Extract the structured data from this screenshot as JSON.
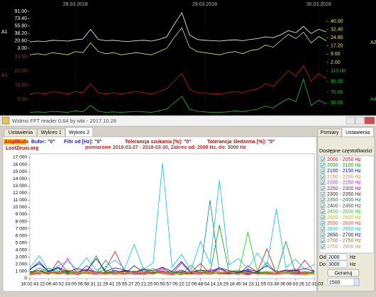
{
  "window": {
    "title": "Widmo FFT reader 0.64 by wbi - 2017.10.28",
    "tabs": [
      "Ustawienia",
      "Wykres 1",
      "Wykres 2"
    ],
    "side_tabs": [
      "Pomiary",
      "Ustawienia"
    ],
    "info": {
      "amplitude": "Amplituda",
      "buffer": "Bufor: \"0\"",
      "filter": "Filtr od [Hz]: \"0\"",
      "search_tol": "Tolerancja szukania [%]: \"0\"",
      "track_tol": "Tolerancja śledzenia [%]: \"0\"",
      "site": "LostZeusi.org"
    },
    "list_title": "Dostępne częstotliwości",
    "from_label": "Od",
    "from_value": "2000",
    "from_unit": "Hz",
    "to_label": "Do",
    "to_value": "3000",
    "to_unit": "Hz",
    "button": "Generuj",
    "spinner": "1500"
  },
  "chart_data": [
    {
      "type": "line",
      "categories": [
        null,
        null,
        null,
        null,
        null,
        null,
        "28.03.2018",
        null,
        null,
        null,
        null,
        null,
        null,
        null,
        null,
        null,
        null,
        null,
        null,
        null,
        null,
        null,
        null,
        "29.03.2018",
        null,
        null,
        null,
        null,
        null,
        null,
        null,
        null,
        null,
        null,
        null,
        null,
        null,
        null,
        "30.03.2018",
        null
      ],
      "series": [
        {
          "name": "A1",
          "color": "#ffffff",
          "ylim": [
            3,
            91
          ],
          "yticks": [
            {
              "value": 91,
              "label": "91.00"
            },
            {
              "value": 73.4,
              "label": "73.40"
            },
            {
              "value": 55.8,
              "label": "55.80"
            },
            {
              "value": 38.2,
              "label": "38.20"
            },
            {
              "value": 20.6,
              "label": "20.60"
            },
            {
              "value": 3,
              "label": "3.00"
            }
          ],
          "values": [
            18,
            20,
            19,
            22,
            21,
            20,
            23,
            25,
            48,
            24,
            21,
            22,
            20,
            19,
            21,
            22,
            20,
            24,
            30,
            60,
            88,
            35,
            24,
            22,
            21,
            20,
            22,
            23,
            21,
            24,
            26,
            30,
            28,
            35,
            45,
            40,
            55,
            38,
            48,
            42
          ]
        },
        {
          "name": "A2",
          "color": "#e8e070",
          "ylim": [
            2,
            40
          ],
          "yticks": [
            {
              "value": 40,
              "label": "40.00"
            },
            {
              "value": 32.4,
              "label": "32.40"
            },
            {
              "value": 24.8,
              "label": "24.80"
            },
            {
              "value": 17.2,
              "label": "17.20"
            },
            {
              "value": 9.6,
              "label": "9.60"
            },
            {
              "value": 2,
              "label": "2.00"
            }
          ],
          "values": [
            9,
            10,
            9,
            11,
            10,
            9,
            12,
            11,
            20,
            12,
            10,
            11,
            9,
            10,
            11,
            10,
            9,
            12,
            15,
            25,
            34,
            16,
            12,
            11,
            10,
            9,
            11,
            12,
            10,
            13,
            14,
            18,
            16,
            22,
            28,
            24,
            30,
            20,
            26,
            22
          ]
        },
        {
          "name": "A3",
          "color": "#d01818",
          "ylim": [
            0,
            33
          ],
          "yticks": [
            {
              "value": 33,
              "label": "33.00"
            },
            {
              "value": 22,
              "label": "22.00"
            },
            {
              "value": 11,
              "label": "11.00"
            },
            {
              "value": 0,
              "label": "0.00"
            }
          ],
          "values": [
            4,
            5,
            4,
            6,
            5,
            4,
            6,
            5,
            12,
            5,
            4,
            5,
            4,
            5,
            6,
            5,
            4,
            6,
            8,
            14,
            20,
            8,
            5,
            5,
            4,
            4,
            5,
            6,
            5,
            7,
            8,
            12,
            10,
            16,
            22,
            18,
            26,
            14,
            20,
            16
          ]
        },
        {
          "name": "A4",
          "color": "#20c020",
          "ylim": [
            30,
            110
          ],
          "yticks": [
            {
              "value": 110,
              "label": "110.00"
            },
            {
              "value": 90,
              "label": "90.00"
            },
            {
              "value": 70,
              "label": "70.00"
            },
            {
              "value": 50,
              "label": "50.00"
            }
          ],
          "values": [
            32,
            33,
            32,
            34,
            33,
            32,
            35,
            33,
            45,
            34,
            32,
            33,
            32,
            33,
            34,
            33,
            32,
            35,
            38,
            50,
            62,
            38,
            34,
            33,
            32,
            32,
            33,
            35,
            33,
            36,
            38,
            44,
            40,
            50,
            58,
            52,
            95,
            45,
            55,
            48
          ]
        }
      ]
    },
    {
      "type": "line",
      "subtitle": "pomiarowe 2018-03-27 - 2018-03-30, Zakres od: 2000 Hz, do: 3000 Hz",
      "categories": [
        "18:02:43",
        null,
        "22:06:40",
        null,
        "02:33:00",
        null,
        "06:58:31",
        null,
        "11:29:41",
        null,
        "15:55:27",
        null,
        "20:21:25",
        null,
        "00:55:57",
        null,
        "05:22:12",
        null,
        "09:48:54",
        null,
        "14:18:29",
        null,
        "18:45:34",
        null,
        "23:11:55",
        null,
        "03:38:36",
        null,
        "08:03:26",
        null,
        "12:31:03"
      ],
      "ylim": [
        0,
        17500
      ],
      "yticks": [
        0,
        {
          "value": 1000,
          "label": "1 000"
        },
        {
          "value": 2000,
          "label": "2 000"
        },
        {
          "value": 3000,
          "label": "3 000"
        },
        {
          "value": 4000,
          "label": "4 000"
        },
        {
          "value": 5000,
          "label": "5 000"
        },
        {
          "value": 6000,
          "label": "6 000"
        },
        {
          "value": 7000,
          "label": "7 000"
        },
        {
          "value": 8000,
          "label": "8 000"
        },
        {
          "value": 9000,
          "label": "9 000"
        },
        {
          "value": 10000,
          "label": "10 000"
        },
        {
          "value": 11000,
          "label": "11 000"
        },
        {
          "value": 12000,
          "label": "12 000"
        },
        {
          "value": 13000,
          "label": "13 000"
        },
        {
          "value": 14000,
          "label": "14 000"
        },
        {
          "value": 15000,
          "label": "15 000"
        },
        {
          "value": 16000,
          "label": "16 000"
        },
        {
          "value": 17000,
          "label": "17 000"
        }
      ],
      "series": [
        {
          "name": "2000 - 2050 Hz",
          "color": "#ff0000",
          "values": [
            800,
            1200,
            600,
            2500,
            900,
            700,
            1100,
            600,
            1400,
            3800,
            900,
            700,
            1200,
            800,
            1500,
            600,
            1000,
            900,
            2100,
            700,
            1300,
            800,
            600,
            1800,
            900,
            4200,
            700,
            1100,
            800,
            2600,
            900
          ]
        },
        {
          "name": "2050 - 2100 Hz",
          "color": "#00a000",
          "values": [
            600,
            900,
            1500,
            700,
            1100,
            500,
            900,
            3200,
            700,
            800,
            1200,
            600,
            900,
            1400,
            700,
            800,
            500,
            1900,
            600,
            800,
            7500,
            900,
            1200,
            600,
            800,
            1000,
            700,
            5200,
            900,
            600,
            1100
          ]
        },
        {
          "name": "2100 - 2150 Hz",
          "color": "#0000ff",
          "values": [
            1200,
            2400,
            900,
            1500,
            600,
            800,
            1300,
            900,
            700,
            1100,
            600,
            1800,
            900,
            700,
            1000,
            800,
            1200,
            600,
            900,
            700,
            1500,
            800,
            600,
            1000,
            700,
            900,
            600,
            800,
            1200,
            700,
            900
          ]
        },
        {
          "name": "2150 - 2200 Hz",
          "color": "#ff8000",
          "values": [
            500,
            700,
            900,
            600,
            800,
            1200,
            700,
            600,
            900,
            500,
            700,
            800,
            600,
            900,
            700,
            500,
            800,
            600,
            700,
            900,
            600,
            800,
            700,
            500,
            900,
            600,
            800,
            700,
            600,
            500,
            700
          ]
        },
        {
          "name": "2200 - 2250 Hz",
          "color": "#ff00ff",
          "values": [
            900,
            600,
            1100,
            800,
            2800,
            700,
            900,
            600,
            800,
            1200,
            700,
            900,
            600,
            800,
            1100,
            700,
            900,
            800,
            600,
            1300,
            900,
            700,
            800,
            600,
            1000,
            800,
            700,
            900,
            1400,
            600,
            800
          ]
        },
        {
          "name": "2250 - 2300 Hz",
          "color": "#8000ff",
          "values": [
            700,
            1000,
            800,
            600,
            900,
            700,
            1800,
            800,
            600,
            700,
            900,
            600,
            800,
            700,
            900,
            600,
            2200,
            700,
            800,
            600,
            900,
            700,
            800,
            1100,
            600,
            700,
            900,
            800,
            600,
            700,
            900
          ]
        },
        {
          "name": "2300 - 2350 Hz",
          "color": "#800000",
          "values": [
            600,
            800,
            700,
            900,
            600,
            800,
            700,
            900,
            600,
            800,
            1000,
            700,
            600,
            900,
            700,
            800,
            600,
            700,
            900,
            600,
            800,
            700,
            900,
            600,
            800,
            700,
            600,
            900,
            700,
            800,
            600
          ]
        },
        {
          "name": "2350 - 2400 Hz",
          "color": "#008080",
          "values": [
            800,
            1500,
            900,
            700,
            1200,
            800,
            900,
            700,
            2600,
            800,
            1100,
            700,
            900,
            800,
            1300,
            900,
            700,
            800,
            1000,
            11000,
            900,
            700,
            800,
            1200,
            700,
            2300,
            800,
            900,
            700,
            1000,
            800
          ]
        },
        {
          "name": "2400 - 2450 Hz",
          "color": "#404040",
          "values": [
            900,
            1200,
            700,
            1000,
            800,
            900,
            1300,
            700,
            900,
            800,
            1100,
            700,
            900,
            1000,
            800,
            700,
            900,
            800,
            1200,
            700,
            900,
            800,
            1000,
            700,
            900,
            800,
            700,
            1100,
            900,
            800,
            700
          ]
        },
        {
          "name": "2450 - 2500 Hz",
          "color": "#00e000",
          "values": [
            1100,
            700,
            900,
            1300,
            800,
            1000,
            700,
            900,
            1200,
            800,
            900,
            700,
            1500,
            800,
            900,
            1000,
            800,
            700,
            900,
            1100,
            800,
            900,
            700,
            6500,
            900,
            800,
            700,
            900,
            1000,
            800,
            900
          ]
        },
        {
          "name": "2500 - 2550 Hz",
          "color": "#c0c000",
          "values": [
            700,
            900,
            800,
            600,
            1000,
            700,
            900,
            800,
            700,
            600,
            900,
            800,
            700,
            1000,
            800,
            700,
            600,
            900,
            800,
            700,
            900,
            1000,
            700,
            800,
            600,
            900,
            700,
            800,
            900,
            700,
            600
          ]
        },
        {
          "name": "2550 - 2600 Hz",
          "color": "#ff4040",
          "values": [
            600,
            700,
            900,
            800,
            700,
            600,
            800,
            900,
            700,
            800,
            600,
            700,
            900,
            800,
            700,
            600,
            800,
            700,
            900,
            800,
            700,
            600,
            800,
            900,
            700,
            800,
            600,
            700,
            800,
            900,
            700
          ]
        },
        {
          "name": "2600 - 2650 Hz",
          "color": "#00c0ff",
          "values": [
            1500,
            3200,
            1100,
            1800,
            2400,
            1300,
            2900,
            1200,
            1700,
            2600,
            1400,
            4800,
            1300,
            2200,
            16200,
            1600,
            3400,
            1200,
            5200,
            2100,
            13800,
            1900,
            2800,
            1400,
            3600,
            1700,
            9800,
            1500,
            2700,
            1300,
            2000
          ]
        },
        {
          "name": "2650 - 2700 Hz",
          "color": "#000080",
          "values": [
            1300,
            2100,
            1000,
            1600,
            900,
            1400,
            1100,
            2800,
            1000,
            1500,
            1200,
            900,
            1300,
            1100,
            1600,
            1000,
            2400,
            900,
            1200,
            1000,
            1500,
            1100,
            900,
            1300,
            1000,
            1800,
            900,
            1200,
            1100,
            1400,
            1000
          ]
        },
        {
          "name": "2700 - 2750 Hz",
          "color": "#808000",
          "values": [
            800,
            1000,
            700,
            900,
            1200,
            800,
            700,
            1000,
            800,
            900,
            700,
            1100,
            800,
            700,
            900,
            800,
            1000,
            700,
            800,
            900,
            700,
            1000,
            800,
            900,
            700,
            800,
            1100,
            700,
            900,
            800,
            700
          ]
        },
        {
          "name": "2750 - 2800 Hz",
          "color": "#ff8040",
          "values": [
            700,
            800,
            600,
            900,
            700,
            800,
            1000,
            700,
            600,
            800,
            900,
            700,
            800,
            600,
            900,
            700,
            800,
            1000,
            700,
            600,
            800,
            900,
            700,
            800,
            600,
            700,
            900,
            800,
            700,
            600,
            800
          ]
        }
      ]
    }
  ]
}
